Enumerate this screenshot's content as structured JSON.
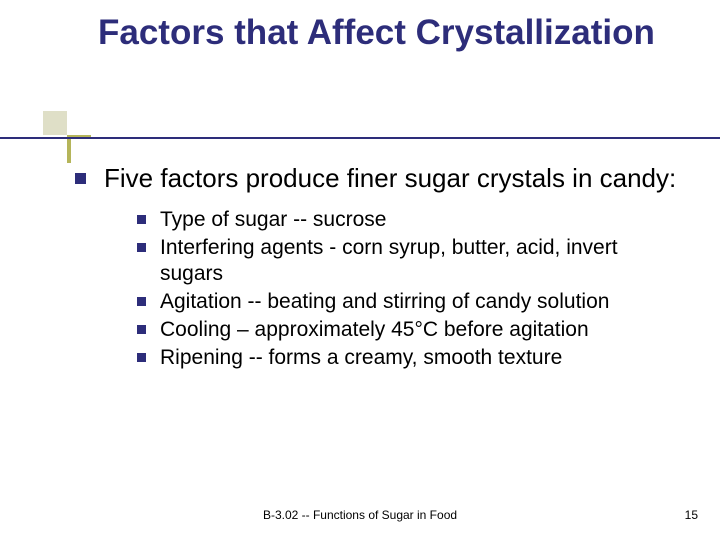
{
  "colors": {
    "title": "#2d2d7a",
    "underline": "#2d2d7a",
    "bullet": "#2d2d7a",
    "deco_light": "#dfdfc7",
    "deco_olive": "#b5b55a",
    "body_text": "#000000",
    "background": "#ffffff"
  },
  "typography": {
    "title_fontsize": 35,
    "title_weight": "bold",
    "lvl1_fontsize": 26,
    "lvl2_fontsize": 21,
    "footer_fontsize": 12,
    "font_family": "Verdana"
  },
  "title": "Factors that Affect Crystallization",
  "lvl1_text": "Five factors produce finer sugar crystals in candy:",
  "sub_items": [
    "Type of sugar -- sucrose",
    "Interfering agents - corn syrup, butter, acid, invert sugars",
    "Agitation -- beating and stirring of candy solution",
    "Cooling – approximately 45°C before agitation",
    "Ripening -- forms a creamy, smooth texture"
  ],
  "footer": "B-3.02 -- Functions of Sugar in Food",
  "page_number": "15"
}
